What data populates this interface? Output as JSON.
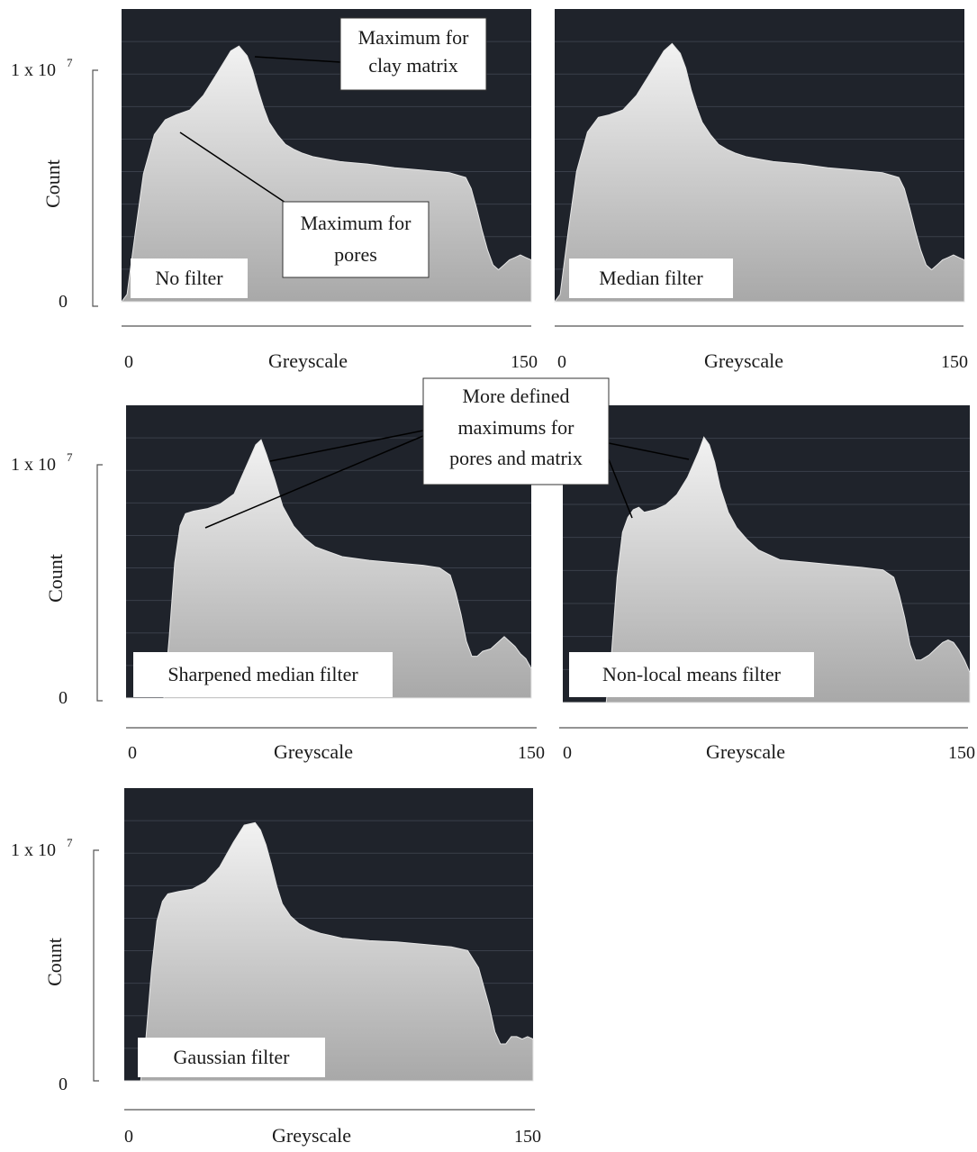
{
  "chart_data": [
    {
      "type": "area",
      "filter_label": "No filter",
      "xlabel": "Greyscale",
      "ylabel": "Count",
      "xlim": [
        0,
        150
      ],
      "ylim": [
        0,
        10000000
      ],
      "y_tick_labels": [
        "0",
        "1 x 10",
        "7"
      ],
      "x_tick_labels": [
        "0",
        "150"
      ],
      "grid": true,
      "x": [
        0,
        2,
        5,
        8,
        12,
        16,
        20,
        25,
        30,
        35,
        40,
        43,
        46,
        48,
        50,
        52,
        54,
        57,
        60,
        63,
        66,
        70,
        75,
        80,
        90,
        100,
        110,
        120,
        126,
        128,
        130,
        132,
        134,
        136,
        138,
        140,
        142,
        144,
        146,
        148,
        150
      ],
      "values": [
        0,
        300000,
        2800000,
        5200000,
        6800000,
        7400000,
        7600000,
        7800000,
        8400000,
        9300000,
        10200000,
        10400000,
        10000000,
        9400000,
        8600000,
        7900000,
        7300000,
        6800000,
        6400000,
        6200000,
        6050000,
        5900000,
        5800000,
        5700000,
        5600000,
        5450000,
        5350000,
        5250000,
        5050000,
        4600000,
        3800000,
        2900000,
        2100000,
        1500000,
        1300000,
        1500000,
        1700000,
        1800000,
        1900000,
        1800000,
        1700000
      ]
    },
    {
      "type": "area",
      "filter_label": "Median filter",
      "xlabel": "Greyscale",
      "ylabel": "",
      "xlim": [
        0,
        150
      ],
      "ylim": [
        0,
        10000000
      ],
      "x_tick_labels": [
        "0",
        "150"
      ],
      "grid": true,
      "x": [
        0,
        2,
        5,
        8,
        12,
        16,
        20,
        25,
        30,
        35,
        40,
        43,
        46,
        48,
        50,
        52,
        54,
        57,
        60,
        63,
        66,
        70,
        75,
        80,
        90,
        100,
        110,
        120,
        126,
        128,
        130,
        132,
        134,
        136,
        138,
        140,
        142,
        144,
        146,
        148,
        150
      ],
      "values": [
        0,
        300000,
        2900000,
        5300000,
        6900000,
        7500000,
        7600000,
        7800000,
        8400000,
        9300000,
        10200000,
        10500000,
        10100000,
        9500000,
        8600000,
        7900000,
        7300000,
        6800000,
        6400000,
        6200000,
        6050000,
        5900000,
        5800000,
        5700000,
        5600000,
        5450000,
        5350000,
        5250000,
        5050000,
        4600000,
        3800000,
        2900000,
        2100000,
        1500000,
        1300000,
        1500000,
        1700000,
        1800000,
        1900000,
        1800000,
        1700000
      ]
    },
    {
      "type": "area",
      "filter_label": "Sharpened median filter",
      "xlabel": "Greyscale",
      "ylabel": "Count",
      "xlim": [
        0,
        150
      ],
      "ylim": [
        0,
        10000000
      ],
      "y_tick_labels": [
        "0",
        "1 x 10",
        "7"
      ],
      "x_tick_labels": [
        "0",
        "150"
      ],
      "grid": true,
      "x": [
        0,
        14,
        16,
        18,
        20,
        22,
        25,
        30,
        35,
        40,
        44,
        48,
        50,
        52,
        55,
        58,
        62,
        66,
        70,
        75,
        80,
        90,
        100,
        110,
        116,
        120,
        122,
        124,
        126,
        128,
        130,
        132,
        135,
        138,
        140,
        142,
        144,
        146,
        148,
        150
      ],
      "values": [
        0,
        0,
        2500000,
        5500000,
        7000000,
        7500000,
        7600000,
        7700000,
        7900000,
        8300000,
        9300000,
        10300000,
        10500000,
        9900000,
        8900000,
        7800000,
        7000000,
        6500000,
        6150000,
        5950000,
        5750000,
        5600000,
        5500000,
        5400000,
        5300000,
        5000000,
        4300000,
        3400000,
        2300000,
        1700000,
        1700000,
        1900000,
        2000000,
        2300000,
        2500000,
        2300000,
        2100000,
        1800000,
        1600000,
        1200000
      ]
    },
    {
      "type": "area",
      "filter_label": "Non-local means filter",
      "xlabel": "Greyscale",
      "ylabel": "",
      "xlim": [
        0,
        150
      ],
      "ylim": [
        0,
        10000000
      ],
      "x_tick_labels": [
        "0",
        "150"
      ],
      "grid": true,
      "x": [
        0,
        16,
        18,
        20,
        22,
        24,
        26,
        28,
        30,
        34,
        38,
        42,
        46,
        50,
        52,
        54,
        56,
        58,
        61,
        64,
        68,
        72,
        76,
        80,
        90,
        100,
        110,
        118,
        122,
        124,
        126,
        128,
        130,
        132,
        135,
        138,
        140,
        142,
        144,
        146,
        148,
        150
      ],
      "values": [
        0,
        0,
        2000000,
        5000000,
        6800000,
        7400000,
        7700000,
        7800000,
        7600000,
        7700000,
        7900000,
        8300000,
        9000000,
        10000000,
        10600000,
        10300000,
        9600000,
        8600000,
        7600000,
        7000000,
        6500000,
        6100000,
        5900000,
        5700000,
        5600000,
        5500000,
        5400000,
        5300000,
        5000000,
        4300000,
        3400000,
        2300000,
        1700000,
        1700000,
        1900000,
        2200000,
        2400000,
        2500000,
        2400000,
        2100000,
        1700000,
        1200000
      ]
    },
    {
      "type": "area",
      "filter_label": "Gaussian filter",
      "xlabel": "Greyscale",
      "ylabel": "Count",
      "xlim": [
        0,
        150
      ],
      "ylim": [
        0,
        10000000
      ],
      "y_tick_labels": [
        "0",
        "1 x 10",
        "7"
      ],
      "x_tick_labels": [
        "0",
        "150"
      ],
      "grid": true,
      "x": [
        0,
        6,
        8,
        10,
        12,
        14,
        16,
        20,
        25,
        30,
        35,
        40,
        44,
        48,
        50,
        52,
        54,
        56,
        58,
        61,
        64,
        68,
        72,
        76,
        80,
        90,
        100,
        110,
        120,
        126,
        130,
        134,
        136,
        138,
        140,
        142,
        144,
        146,
        148,
        150
      ],
      "values": [
        0,
        0,
        1800000,
        4500000,
        6500000,
        7300000,
        7600000,
        7700000,
        7800000,
        8100000,
        8700000,
        9700000,
        10400000,
        10500000,
        10200000,
        9600000,
        8800000,
        7900000,
        7200000,
        6700000,
        6400000,
        6150000,
        6000000,
        5900000,
        5800000,
        5700000,
        5650000,
        5550000,
        5450000,
        5300000,
        4600000,
        3000000,
        2000000,
        1500000,
        1500000,
        1800000,
        1800000,
        1700000,
        1800000,
        1700000
      ]
    }
  ],
  "annotations": {
    "clay_matrix_line1": "Maximum for",
    "clay_matrix_line2": "clay matrix",
    "pores_line1": "Maximum for",
    "pores_line2": "pores",
    "defined_line1": "More defined",
    "defined_line2": "maximums for",
    "defined_line3": "pores and matrix"
  },
  "colors": {
    "plot_background": "#1f232b",
    "grid": "#3a3f4a",
    "area_top": "#f2f2f2",
    "area_bottom": "#a8a8a8"
  }
}
